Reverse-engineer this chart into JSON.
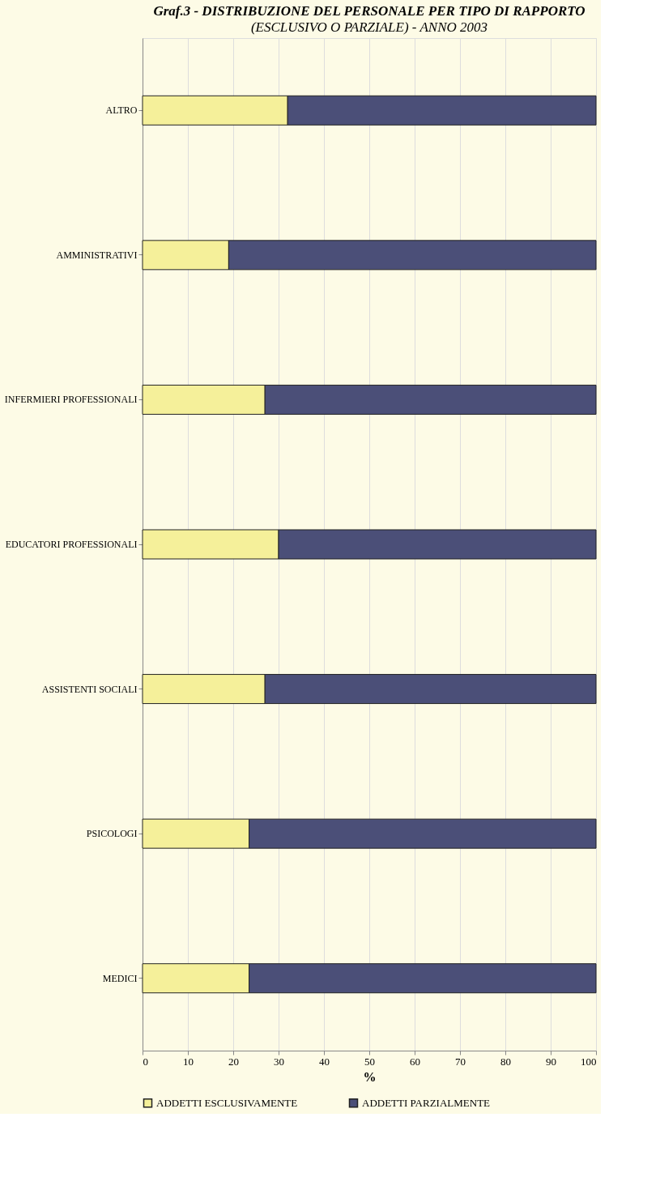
{
  "chart_data": {
    "type": "bar",
    "orientation": "horizontal",
    "stacked": true,
    "title": "Graf.3 - DISTRIBUZIONE DEL PERSONALE PER TIPO DI RAPPORTO",
    "subtitle": "(ESCLUSIVO O PARZIALE) - ANNO 2003",
    "categories": [
      "ALTRO",
      "AMMINISTRATIVI",
      "INFERMIERI PROFESSIONALI",
      "EDUCATORI PROFESSIONALI",
      "ASSISTENTI SOCIALI",
      "PSICOLOGI",
      "MEDICI"
    ],
    "series": [
      {
        "name": "ADDETTI ESCLUSIVAMENTE",
        "color": "#f5f09a",
        "values": [
          32,
          19,
          27,
          30,
          27,
          23.5,
          23.5
        ]
      },
      {
        "name": "ADDETTI PARZIALMENTE",
        "color": "#4b4f78",
        "values": [
          68,
          81,
          73,
          70,
          73,
          76.5,
          76.5
        ]
      }
    ],
    "xlabel": "%",
    "xlim": [
      0,
      100
    ],
    "xticks": [
      0,
      10,
      20,
      30,
      40,
      50,
      60,
      70,
      80,
      90,
      100
    ],
    "grid": "x",
    "legend": "bottom"
  }
}
